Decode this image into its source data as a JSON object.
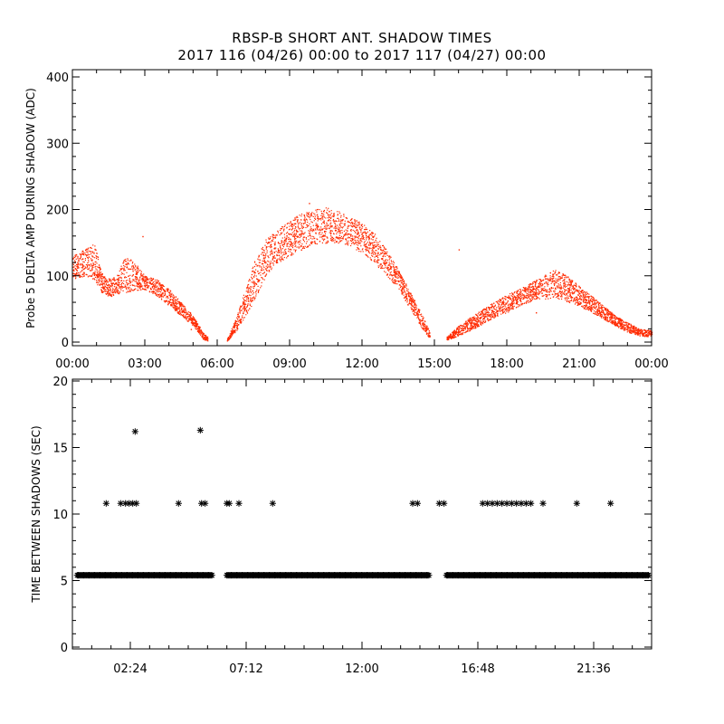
{
  "title_line1": "RBSP-B SHORT ANT. SHADOW TIMES",
  "title_line2": "2017 116 (04/26) 00:00 to 2017 117 (04/27) 00:00",
  "colors": {
    "scatter": "#ff2a00",
    "axes": "#000000",
    "markers": "#000000"
  },
  "chart_data": [
    {
      "type": "scatter",
      "ylabel": "Probe 5 DELTA AMP DURING SHADOW (ADC)",
      "xlim": [
        0,
        24
      ],
      "ylim": [
        0,
        400
      ],
      "x_unit": "hours",
      "x_ticks": [
        "00:00",
        "03:00",
        "06:00",
        "09:00",
        "12:00",
        "15:00",
        "18:00",
        "21:00",
        "00:00"
      ],
      "y_ticks": [
        "0",
        "100",
        "200",
        "300",
        "400"
      ],
      "envelope_hours": [
        0,
        0.5,
        0.9,
        1.2,
        1.4,
        1.8,
        2.2,
        2.6,
        3.0,
        3.5,
        4.0,
        4.5,
        5.0,
        5.4,
        5.6,
        6.4,
        6.8,
        7.5,
        8.0,
        8.5,
        9.0,
        9.5,
        10.0,
        10.5,
        11.0,
        11.5,
        12.0,
        12.5,
        13.0,
        13.5,
        14.0,
        14.5,
        14.8,
        15.5,
        16.0,
        16.5,
        17.0,
        17.5,
        18.0,
        18.5,
        19.0,
        19.5,
        20.0,
        20.5,
        21.0,
        21.5,
        22.0,
        22.5,
        23.0,
        23.5,
        24.0
      ],
      "envelope_low": [
        95,
        100,
        95,
        75,
        70,
        72,
        75,
        78,
        80,
        70,
        55,
        40,
        25,
        5,
        2,
        2,
        18,
        60,
        100,
        120,
        130,
        140,
        148,
        150,
        150,
        145,
        135,
        120,
        100,
        80,
        50,
        20,
        5,
        3,
        10,
        18,
        28,
        38,
        45,
        55,
        62,
        65,
        68,
        60,
        55,
        45,
        35,
        25,
        15,
        10,
        8
      ],
      "envelope_high": [
        130,
        140,
        150,
        105,
        95,
        100,
        130,
        120,
        100,
        95,
        80,
        60,
        40,
        15,
        8,
        5,
        40,
        120,
        155,
        170,
        185,
        195,
        200,
        205,
        198,
        190,
        180,
        165,
        140,
        110,
        75,
        40,
        15,
        8,
        25,
        38,
        50,
        62,
        72,
        80,
        90,
        100,
        110,
        100,
        85,
        70,
        55,
        40,
        30,
        20,
        18
      ],
      "gaps_hours": [
        [
          5.6,
          6.4
        ],
        [
          14.8,
          15.5
        ]
      ]
    },
    {
      "type": "scatter",
      "ylabel": "TIME BETWEEN SHADOWS (SEC)",
      "xlim": [
        0,
        24
      ],
      "ylim": [
        0,
        20
      ],
      "x_unit": "hours",
      "x_ticks": [
        "02:24",
        "07:12",
        "12:00",
        "16:48",
        "21:36"
      ],
      "y_ticks": [
        "0",
        "5",
        "10",
        "15",
        "20"
      ],
      "marker": "*",
      "baseline_y": 5.4,
      "baseline_ranges_hours": [
        [
          0.2,
          5.8
        ],
        [
          6.4,
          14.8
        ],
        [
          15.5,
          23.9
        ]
      ],
      "points": [
        {
          "x": 1.4,
          "y": 10.8
        },
        {
          "x": 2.0,
          "y": 10.8
        },
        {
          "x": 2.2,
          "y": 10.8
        },
        {
          "x": 2.35,
          "y": 10.8
        },
        {
          "x": 2.5,
          "y": 10.8
        },
        {
          "x": 2.6,
          "y": 16.2
        },
        {
          "x": 2.65,
          "y": 10.8
        },
        {
          "x": 4.4,
          "y": 10.8
        },
        {
          "x": 5.3,
          "y": 16.3
        },
        {
          "x": 5.35,
          "y": 10.8
        },
        {
          "x": 5.5,
          "y": 10.8
        },
        {
          "x": 6.4,
          "y": 10.8
        },
        {
          "x": 6.5,
          "y": 10.8
        },
        {
          "x": 6.9,
          "y": 10.8
        },
        {
          "x": 8.3,
          "y": 10.8
        },
        {
          "x": 14.1,
          "y": 10.8
        },
        {
          "x": 14.3,
          "y": 10.8
        },
        {
          "x": 15.2,
          "y": 10.8
        },
        {
          "x": 15.4,
          "y": 10.8
        },
        {
          "x": 17.0,
          "y": 10.8
        },
        {
          "x": 17.2,
          "y": 10.8
        },
        {
          "x": 17.4,
          "y": 10.8
        },
        {
          "x": 17.6,
          "y": 10.8
        },
        {
          "x": 17.8,
          "y": 10.8
        },
        {
          "x": 18.0,
          "y": 10.8
        },
        {
          "x": 18.2,
          "y": 10.8
        },
        {
          "x": 18.4,
          "y": 10.8
        },
        {
          "x": 18.6,
          "y": 10.8
        },
        {
          "x": 18.8,
          "y": 10.8
        },
        {
          "x": 19.0,
          "y": 10.8
        },
        {
          "x": 19.5,
          "y": 10.8
        },
        {
          "x": 20.9,
          "y": 10.8
        },
        {
          "x": 22.3,
          "y": 10.8
        }
      ]
    }
  ]
}
